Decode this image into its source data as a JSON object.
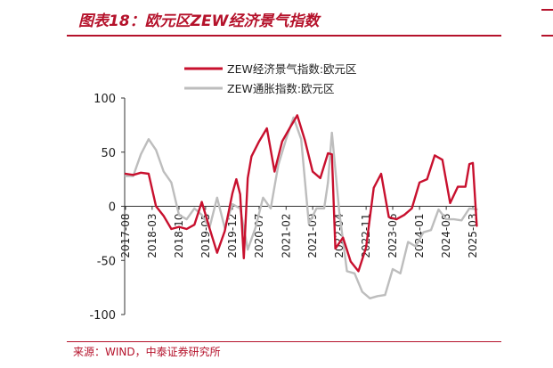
{
  "figure": {
    "title": "图表18：欧元区ZEW经济景气指数",
    "source": "来源：WIND，中泰证券研究所"
  },
  "colors": {
    "accent": "#b5122b",
    "series_1": "#c8102e",
    "series_2": "#bdbdbd"
  },
  "chart_data": {
    "type": "line",
    "title": "",
    "xlabel": "",
    "ylabel": "",
    "ylim": [
      -100,
      100
    ],
    "yticks": [
      "100",
      "50",
      "0",
      "-50",
      "-100"
    ],
    "grid": false,
    "legend_position": "top",
    "x_ticks": [
      "2017-08",
      "2018-03",
      "2018-10",
      "2019-05",
      "2019-12",
      "2020-07",
      "2021-02",
      "2021-09",
      "2022-04",
      "2022-11",
      "2023-06",
      "2024-01",
      "2024-08",
      "2025-03"
    ],
    "series": [
      {
        "name": "ZEW经济景气指数:欧元区",
        "x": [
          "2017-08",
          "2017-10",
          "2017-12",
          "2018-02",
          "2018-04",
          "2018-06",
          "2018-08",
          "2018-10",
          "2018-12",
          "2019-02",
          "2019-04",
          "2019-06",
          "2019-08",
          "2019-10",
          "2019-12",
          "2020-01",
          "2020-02",
          "2020-03",
          "2020-04",
          "2020-05",
          "2020-07",
          "2020-09",
          "2020-11",
          "2021-01",
          "2021-03",
          "2021-05",
          "2021-07",
          "2021-09",
          "2021-11",
          "2022-01",
          "2022-02",
          "2022-03",
          "2022-05",
          "2022-07",
          "2022-09",
          "2022-11",
          "2023-01",
          "2023-03",
          "2023-05",
          "2023-07",
          "2023-09",
          "2023-11",
          "2024-01",
          "2024-03",
          "2024-05",
          "2024-07",
          "2024-09",
          "2024-11",
          "2025-01",
          "2025-02",
          "2025-03",
          "2025-04"
        ],
        "y": [
          30,
          29,
          31,
          30,
          0,
          -9,
          -21,
          -19,
          -21,
          -17,
          4,
          -20,
          -43,
          -23,
          12,
          25,
          11,
          -48,
          26,
          46,
          60,
          72,
          32,
          60,
          72,
          84,
          61,
          32,
          26,
          49,
          48,
          -39,
          -29,
          -51,
          -60,
          -38,
          17,
          30,
          -10,
          -12,
          -8,
          -2,
          22,
          25,
          47,
          43,
          3,
          18,
          18,
          39,
          40,
          -18
        ]
      },
      {
        "name": "ZEW通胀指数:欧元区",
        "x": [
          "2017-08",
          "2017-10",
          "2017-12",
          "2018-02",
          "2018-04",
          "2018-06",
          "2018-08",
          "2018-10",
          "2018-12",
          "2019-02",
          "2019-04",
          "2019-06",
          "2019-08",
          "2019-10",
          "2019-12",
          "2020-02",
          "2020-04",
          "2020-06",
          "2020-08",
          "2020-10",
          "2020-12",
          "2021-02",
          "2021-04",
          "2021-06",
          "2021-08",
          "2021-10",
          "2021-12",
          "2022-01",
          "2022-02",
          "2022-04",
          "2022-06",
          "2022-08",
          "2022-10",
          "2022-12",
          "2023-02",
          "2023-04",
          "2023-06",
          "2023-08",
          "2023-10",
          "2023-12",
          "2024-02",
          "2024-04",
          "2024-06",
          "2024-08",
          "2024-10",
          "2024-12",
          "2025-02",
          "2025-04"
        ],
        "y": [
          28,
          28,
          48,
          62,
          52,
          32,
          22,
          -8,
          -12,
          -2,
          -8,
          -20,
          8,
          -20,
          2,
          -2,
          -40,
          -20,
          8,
          -2,
          38,
          62,
          82,
          62,
          -16,
          -2,
          -2,
          22,
          68,
          -5,
          -60,
          -62,
          -79,
          -85,
          -83,
          -82,
          -58,
          -62,
          -33,
          -37,
          -24,
          -22,
          -3,
          -12,
          -12,
          -13,
          -2,
          -3
        ]
      }
    ]
  }
}
